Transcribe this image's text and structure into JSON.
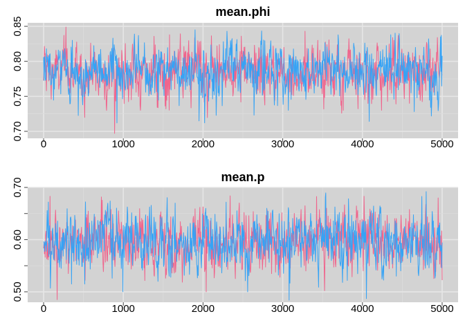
{
  "chart_data": [
    {
      "type": "line",
      "title": "mean.phi",
      "xlabel": "",
      "ylabel": "",
      "xlim": [
        -200,
        5200
      ],
      "ylim": [
        0.69,
        0.855
      ],
      "x_ticks": [
        0,
        1000,
        2000,
        3000,
        4000,
        5000
      ],
      "x_tick_labels": [
        "0",
        "1000",
        "2000",
        "3000",
        "4000",
        "5000"
      ],
      "y_ticks": [
        0.7,
        0.75,
        0.8,
        0.85
      ],
      "y_tick_labels": [
        "0.70",
        "0.75",
        "0.80",
        "0.85"
      ],
      "grid": true,
      "iterations": 5000,
      "series": [
        {
          "color": "#f0648c",
          "mean": 0.785,
          "sd": 0.02,
          "min": 0.697,
          "max": 0.849,
          "anchors": [
            {
              "x": 280,
              "y": 0.849
            },
            {
              "x": 890,
              "y": 0.697
            },
            {
              "x": 1580,
              "y": 0.838
            },
            {
              "x": 2480,
              "y": 0.836
            },
            {
              "x": 3280,
              "y": 0.843
            },
            {
              "x": 3760,
              "y": 0.73
            },
            {
              "x": 4240,
              "y": 0.73
            },
            {
              "x": 4590,
              "y": 0.74
            }
          ]
        },
        {
          "color": "#36a3f5",
          "mean": 0.785,
          "sd": 0.02,
          "min": 0.712,
          "max": 0.845,
          "anchors": [
            {
              "x": 920,
              "y": 0.712
            },
            {
              "x": 1900,
              "y": 0.845
            },
            {
              "x": 2300,
              "y": 0.843
            },
            {
              "x": 3070,
              "y": 0.73
            },
            {
              "x": 4980,
              "y": 0.835
            },
            {
              "x": 1950,
              "y": 0.715
            }
          ]
        }
      ]
    },
    {
      "type": "line",
      "title": "mean.p",
      "xlabel": "",
      "ylabel": "",
      "xlim": [
        -200,
        5200
      ],
      "ylim": [
        0.48,
        0.7
      ],
      "x_ticks": [
        0,
        1000,
        2000,
        3000,
        4000,
        5000
      ],
      "x_tick_labels": [
        "0",
        "1000",
        "2000",
        "3000",
        "4000",
        "5000"
      ],
      "y_ticks": [
        0.5,
        0.6,
        0.7
      ],
      "y_tick_labels": [
        "0.50",
        "0.60",
        "0.70"
      ],
      "minor_y_ticks": [
        0.55,
        0.65
      ],
      "grid": true,
      "iterations": 5000,
      "series": [
        {
          "color": "#f0648c",
          "mean": 0.595,
          "sd": 0.03,
          "min": 0.485,
          "max": 0.684,
          "anchors": [
            {
              "x": 80,
              "y": 0.683
            },
            {
              "x": 170,
              "y": 0.485
            },
            {
              "x": 2040,
              "y": 0.5
            },
            {
              "x": 2340,
              "y": 0.684
            },
            {
              "x": 4020,
              "y": 0.683
            },
            {
              "x": 4950,
              "y": 0.68
            }
          ]
        },
        {
          "color": "#36a3f5",
          "mean": 0.595,
          "sd": 0.03,
          "min": 0.484,
          "max": 0.692,
          "anchors": [
            {
              "x": 60,
              "y": 0.672
            },
            {
              "x": 3080,
              "y": 0.484
            },
            {
              "x": 4800,
              "y": 0.692
            },
            {
              "x": 2560,
              "y": 0.5
            },
            {
              "x": 1650,
              "y": 0.67
            },
            {
              "x": 350,
              "y": 0.515
            }
          ]
        }
      ]
    }
  ]
}
